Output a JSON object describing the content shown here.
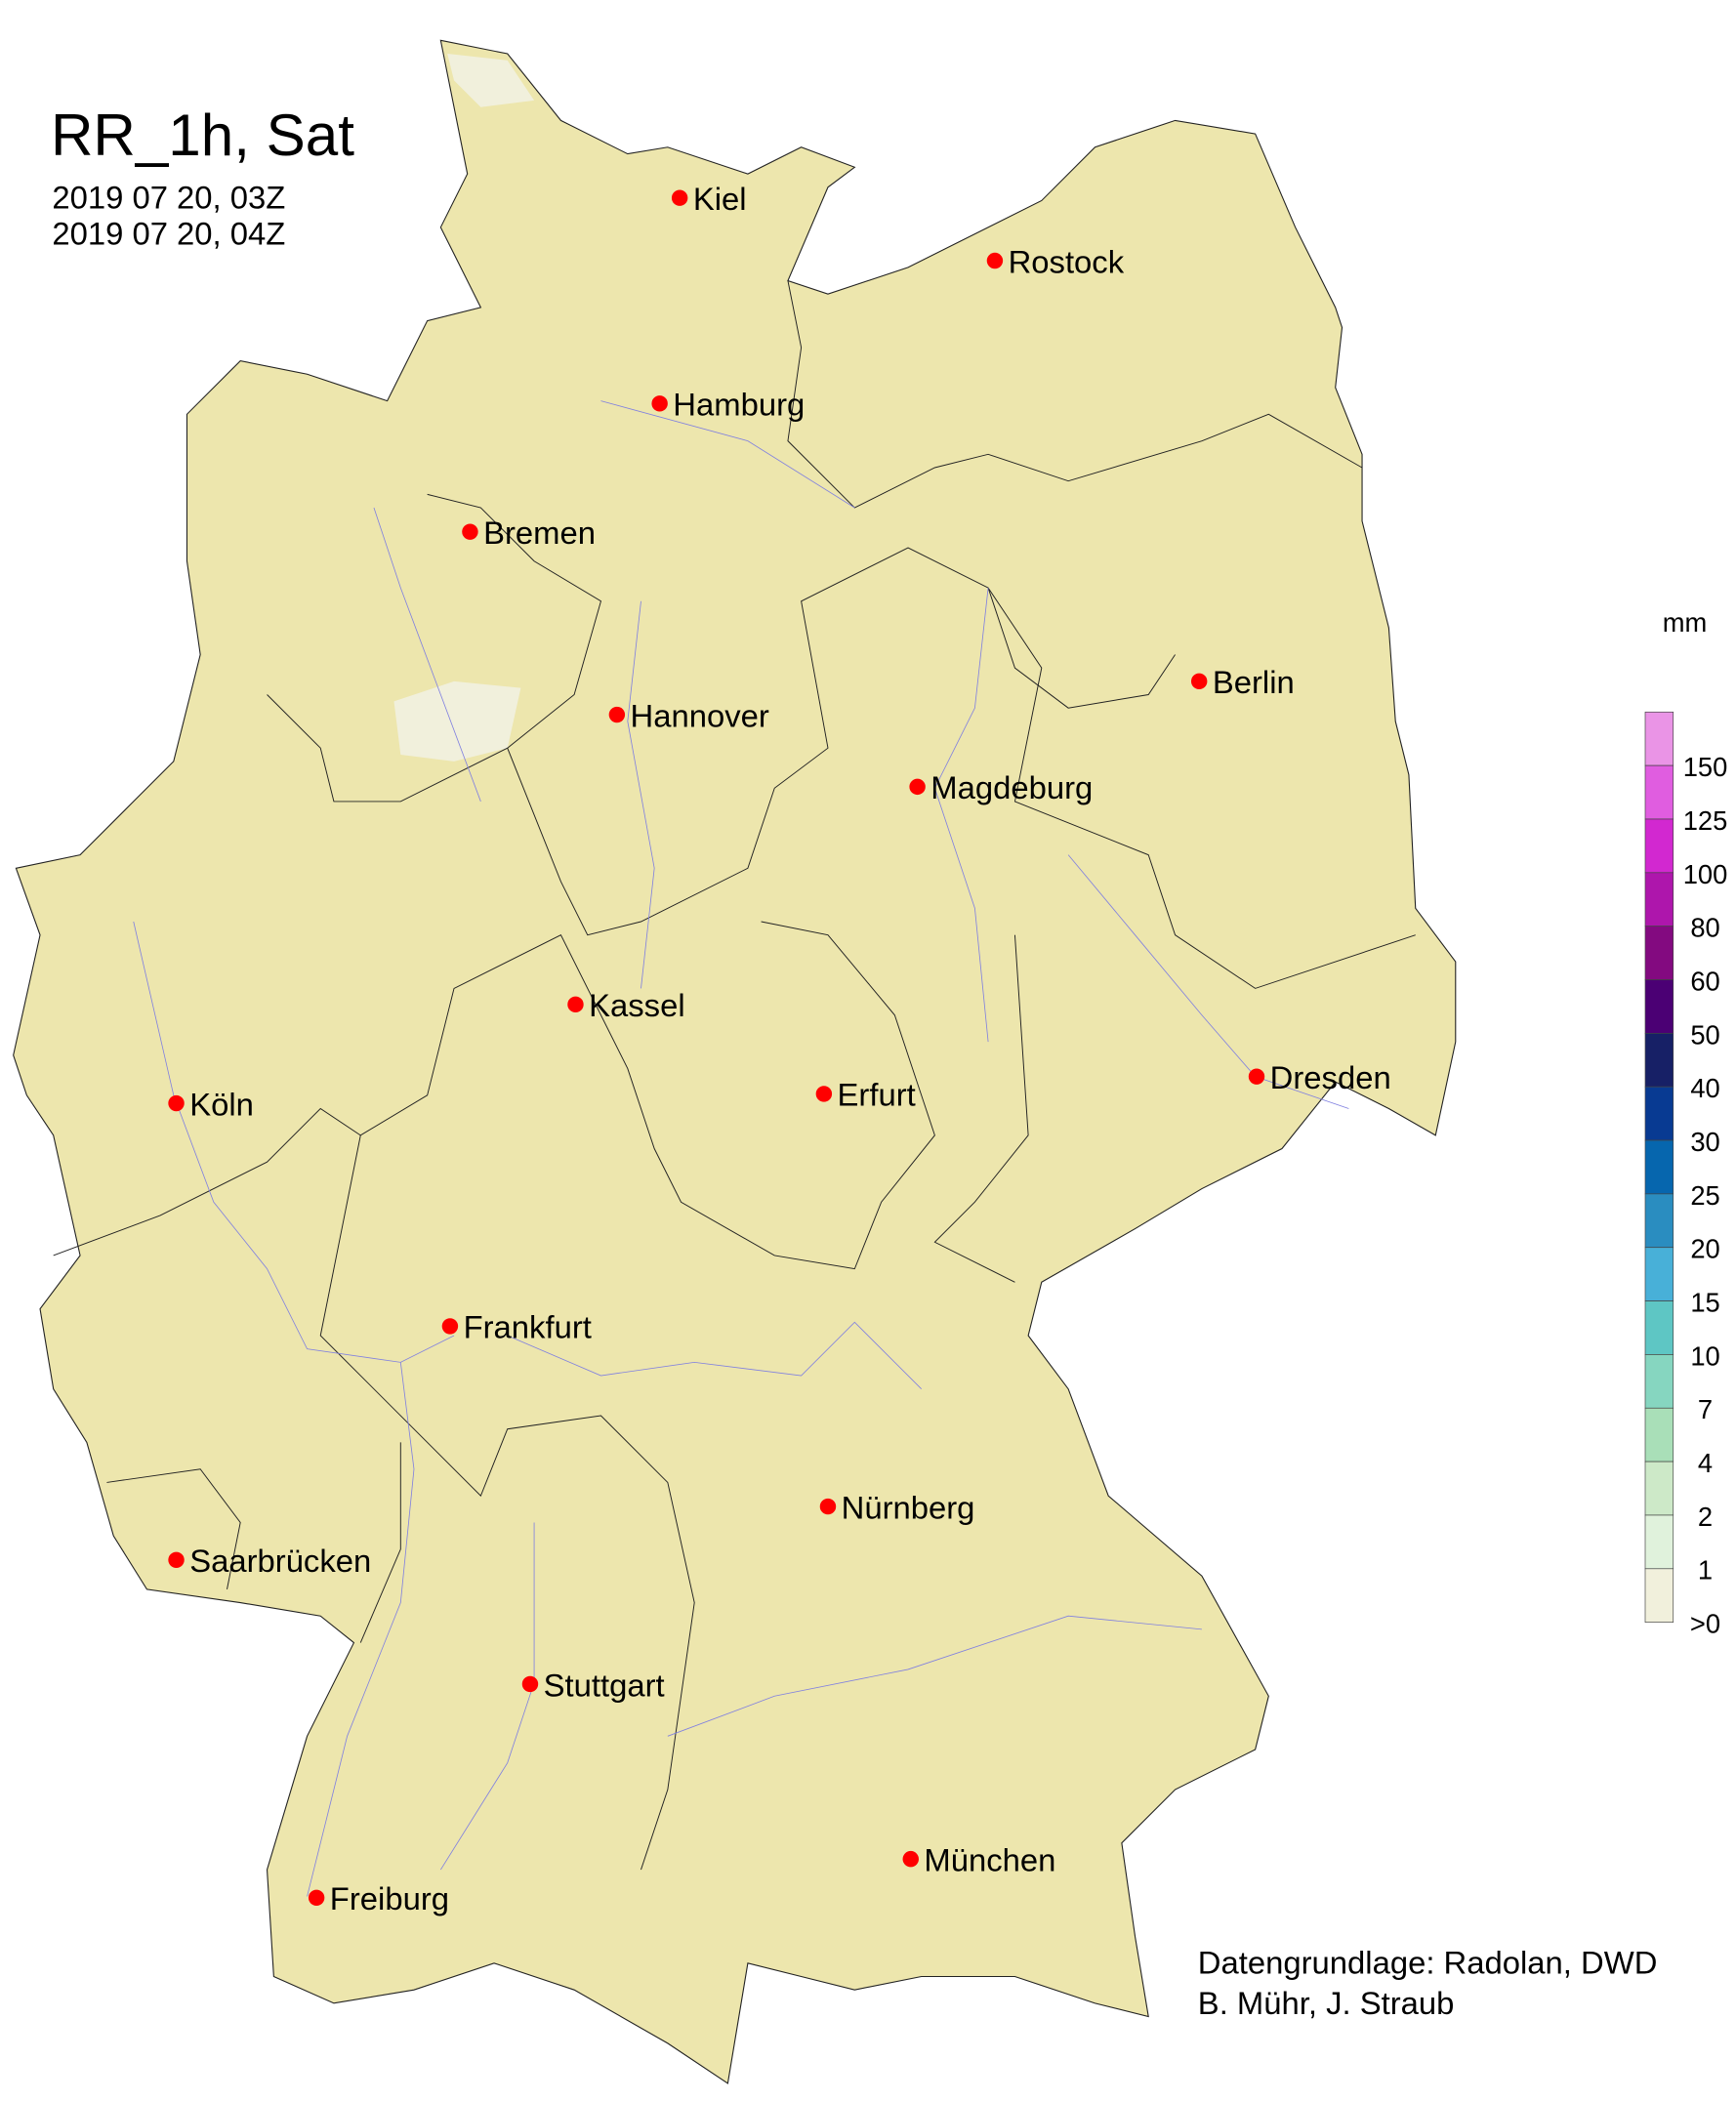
{
  "title": "RR_1h, Sat",
  "time_start": "2019 07 20, 03Z",
  "time_end": "2019 07 20, 04Z",
  "land_color": "#ede6ad",
  "cities": [
    "Kiel",
    "Rostock",
    "Hamburg",
    "Bremen",
    "Berlin",
    "Hannover",
    "Magdeburg",
    "Kassel",
    "Köln",
    "Erfurt",
    "Dresden",
    "Frankfurt",
    "Nürnberg",
    "Saarbrücken",
    "Stuttgart",
    "München",
    "Freiburg"
  ],
  "legend": {
    "unit": "mm",
    "colors": [
      "#ea94e6",
      "#e05de0",
      "#d228d0",
      "#ae16ac",
      "#830a80",
      "#4b0074",
      "#172066",
      "#083a92",
      "#0666ae",
      "#2a8dc0",
      "#48b0d8",
      "#5ec6c4",
      "#86d6c0",
      "#a9dfb8",
      "#cde9c8",
      "#e0f2dc",
      "#f1f0dc"
    ],
    "labels": [
      "150",
      "125",
      "100",
      "80",
      "60",
      "50",
      "40",
      "30",
      "25",
      "20",
      "15",
      "10",
      "7",
      "4",
      "2",
      "1",
      ">0"
    ]
  },
  "credits": {
    "line1": "Datengrundlage: Radolan, DWD",
    "line2": "B. Mühr, J. Straub"
  }
}
